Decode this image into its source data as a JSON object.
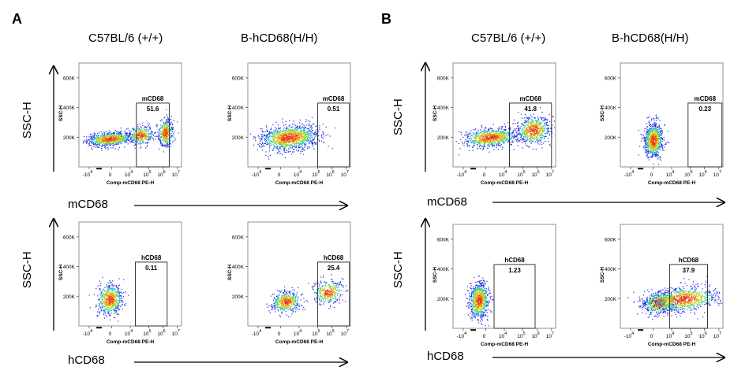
{
  "panels": [
    {
      "letter": "A",
      "columns": [
        "C57BL/6 (+/+)",
        "B-hCD68(H/H)"
      ],
      "rows": [
        {
          "y_title": "SSC-H",
          "x_title": "mCD68"
        },
        {
          "y_title": "SSC-H",
          "x_title": "hCD68"
        }
      ]
    },
    {
      "letter": "B",
      "columns": [
        "C57BL/6 (+/+)",
        "B-hCD68(H/H)"
      ],
      "rows": [
        {
          "y_title": "SSC-H",
          "x_title": "mCD68"
        },
        {
          "y_title": "SSC-H",
          "x_title": "hCD68"
        }
      ]
    }
  ],
  "plot_axes": {
    "ylabel": "SSC-H",
    "xlabel": "Comp-mCD68 PE-H",
    "y_ticks": [
      "600K",
      "400K",
      "200K"
    ],
    "x_ticks": [
      {
        "base": "-10",
        "exp": "4"
      },
      {
        "base": "0",
        "exp": ""
      },
      {
        "base": "10",
        "exp": "4"
      },
      {
        "base": "10",
        "exp": "5"
      },
      {
        "base": "10",
        "exp": "6"
      },
      {
        "base": "10",
        "exp": "7"
      }
    ]
  },
  "chart_data": [
    {
      "type": "scatter",
      "panel": "A",
      "sample": "C57BL/6 (+/+)",
      "gate": "mCD68",
      "gate_percent": "51.6",
      "ylim": [
        0,
        700
      ],
      "y_unit": "K"
    },
    {
      "type": "scatter",
      "panel": "A",
      "sample": "B-hCD68(H/H)",
      "gate": "mCD68",
      "gate_percent": "0.51",
      "ylim": [
        0,
        700
      ],
      "y_unit": "K"
    },
    {
      "type": "scatter",
      "panel": "A",
      "sample": "C57BL/6 (+/+)",
      "gate": "hCD68",
      "gate_percent": "0.11",
      "ylim": [
        0,
        700
      ],
      "y_unit": "K"
    },
    {
      "type": "scatter",
      "panel": "A",
      "sample": "B-hCD68(H/H)",
      "gate": "hCD68",
      "gate_percent": "25.4",
      "ylim": [
        0,
        700
      ],
      "y_unit": "K"
    },
    {
      "type": "scatter",
      "panel": "B",
      "sample": "C57BL/6 (+/+)",
      "gate": "mCD68",
      "gate_percent": "41.8",
      "ylim": [
        0,
        700
      ],
      "y_unit": "K"
    },
    {
      "type": "scatter",
      "panel": "B",
      "sample": "B-hCD68(H/H)",
      "gate": "mCD68",
      "gate_percent": "0.23",
      "ylim": [
        0,
        700
      ],
      "y_unit": "K"
    },
    {
      "type": "scatter",
      "panel": "B",
      "sample": "C57BL/6 (+/+)",
      "gate": "hCD68",
      "gate_percent": "1.23",
      "ylim": [
        0,
        700
      ],
      "y_unit": "K"
    },
    {
      "type": "scatter",
      "panel": "B",
      "sample": "B-hCD68(H/H)",
      "gate": "hCD68",
      "gate_percent": "37.9",
      "ylim": [
        0,
        700
      ],
      "y_unit": "K"
    }
  ]
}
